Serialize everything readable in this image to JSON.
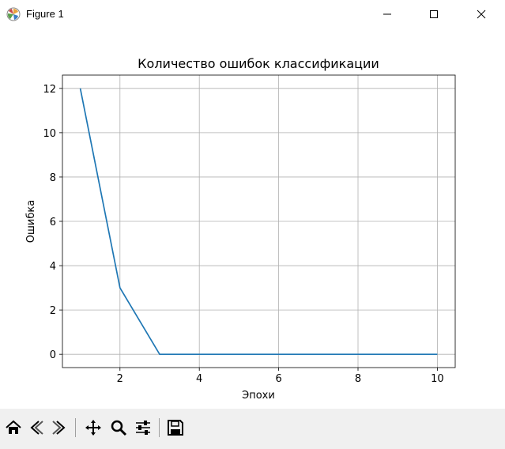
{
  "window": {
    "title": "Figure 1",
    "minimize_icon": "minimize-icon",
    "maximize_icon": "maximize-icon",
    "close_icon": "close-icon"
  },
  "chart_data": {
    "type": "line",
    "title": "Количество ошибок классификации",
    "xlabel": "Эпохи",
    "ylabel": "Ошибка",
    "x": [
      1,
      2,
      3,
      4,
      5,
      6,
      7,
      8,
      9,
      10
    ],
    "series": [
      {
        "values": [
          12,
          3,
          0,
          0,
          0,
          0,
          0,
          0,
          0,
          0
        ],
        "color": "#1f77b4"
      }
    ],
    "xlim": [
      0.55,
      10.45
    ],
    "ylim": [
      -0.6,
      12.6
    ],
    "xticks": [
      2,
      4,
      6,
      8,
      10
    ],
    "yticks": [
      0,
      2,
      4,
      6,
      8,
      10,
      12
    ],
    "grid": true
  },
  "toolbar": {
    "buttons": [
      {
        "name": "home-button",
        "icon": "home-icon"
      },
      {
        "name": "back-button",
        "icon": "back-arrow-icon"
      },
      {
        "name": "forward-button",
        "icon": "forward-arrow-icon"
      },
      {
        "name": "pan-button",
        "icon": "move-icon"
      },
      {
        "name": "zoom-button",
        "icon": "magnifier-icon"
      },
      {
        "name": "configure-subplots-button",
        "icon": "sliders-icon"
      },
      {
        "name": "save-button",
        "icon": "floppy-disk-icon"
      }
    ]
  }
}
